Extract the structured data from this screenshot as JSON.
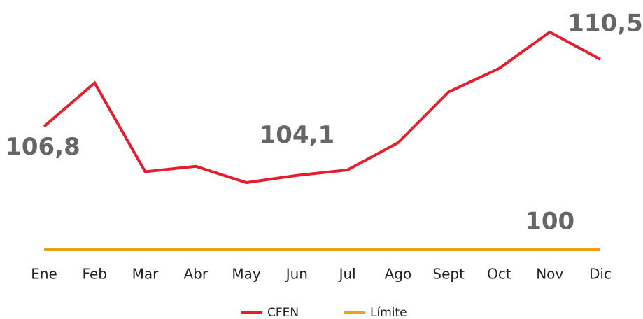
{
  "chart_data": {
    "type": "line",
    "categories": [
      "Ene",
      "Feb",
      "Mar",
      "Abr",
      "May",
      "Jun",
      "Jul",
      "Ago",
      "Sept",
      "Oct",
      "Nov",
      "Dic"
    ],
    "series": [
      {
        "name": "CFEN",
        "color": "#e31e2d",
        "values": [
          106.8,
          109.2,
          104.3,
          104.6,
          103.7,
          104.1,
          104.4,
          105.9,
          108.7,
          110.0,
          112.0,
          110.5
        ],
        "value_labels": [
          "106,8",
          null,
          null,
          null,
          null,
          "104,1",
          null,
          null,
          null,
          null,
          null,
          "110,5"
        ]
      },
      {
        "name": "Límite",
        "color": "#f39b1f",
        "values": [
          100,
          100,
          100,
          100,
          100,
          100,
          100,
          100,
          100,
          100,
          100,
          100
        ],
        "value_labels": [
          null,
          null,
          null,
          null,
          null,
          null,
          null,
          null,
          null,
          null,
          "100",
          null
        ]
      }
    ],
    "ylim": [
      100,
      113
    ],
    "legend": "bottom"
  }
}
